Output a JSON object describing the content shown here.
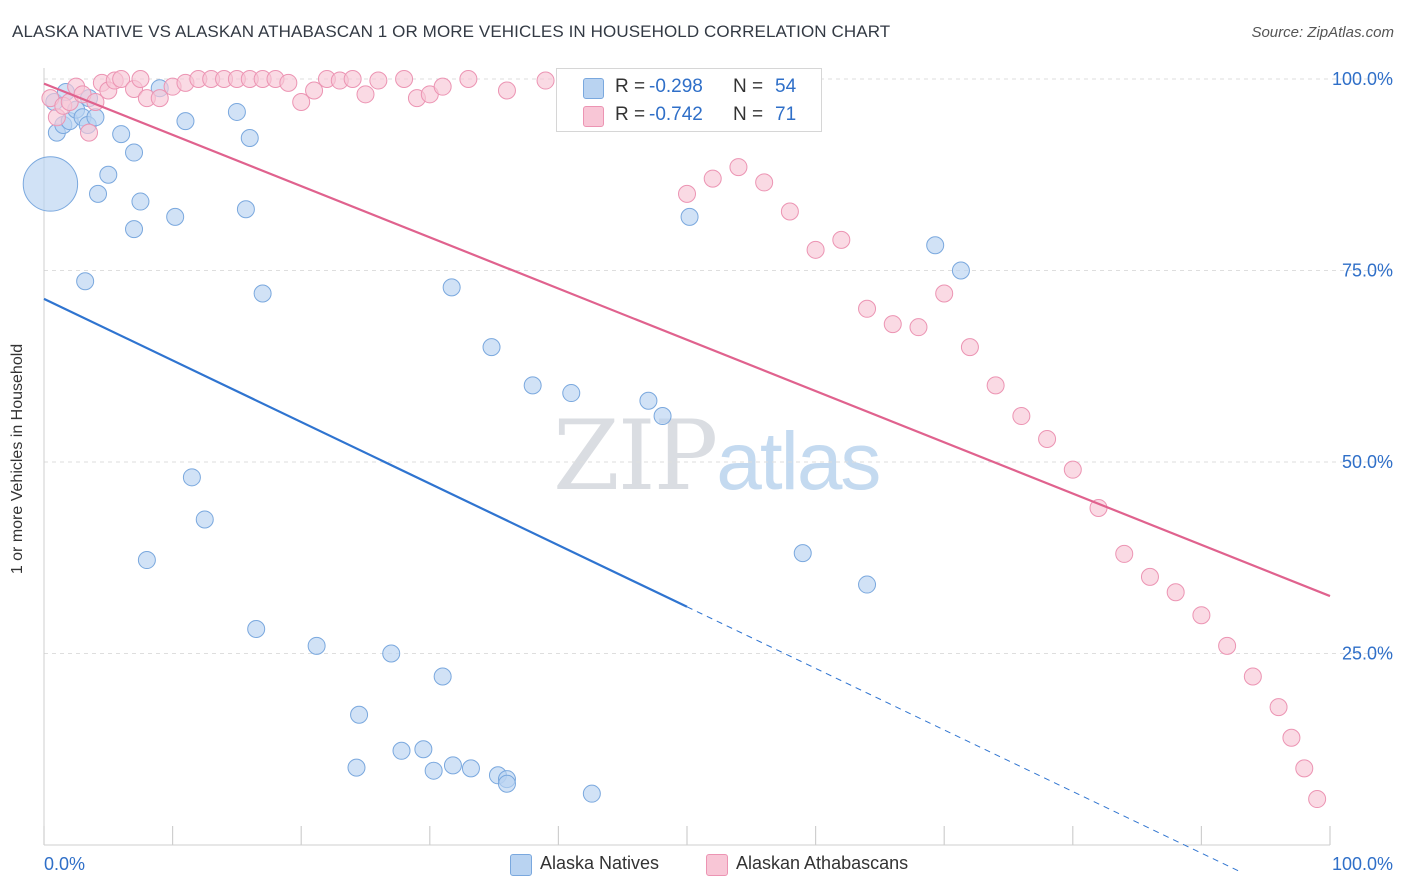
{
  "header": {
    "title": "ALASKA NATIVE VS ALASKAN ATHABASCAN 1 OR MORE VEHICLES IN HOUSEHOLD CORRELATION CHART",
    "source": "Source: ZipAtlas.com"
  },
  "watermark": {
    "zip": "ZIP",
    "atlas": "atlas"
  },
  "legend_top": {
    "rows": [
      {
        "r_label": "R =",
        "r_value": "-0.298",
        "n_label": "N =",
        "n_value": "54"
      },
      {
        "r_label": "R =",
        "r_value": "-0.742",
        "n_label": "N =",
        "n_value": "71"
      }
    ]
  },
  "legend_bottom": {
    "items": [
      "Alaska Natives",
      "Alaskan Athabascans"
    ]
  },
  "colors": {
    "blue_fill": "#b9d3f1",
    "blue_stroke": "#7aa8de",
    "blue_line": "#2f74d0",
    "pink_fill": "#f8c6d6",
    "pink_stroke": "#ec94b3",
    "pink_line": "#e0628e",
    "value_text": "#2f6fc8",
    "grid": "#dedede"
  },
  "chart_data": {
    "type": "scatter",
    "title": "ALASKA NATIVE VS ALASKAN ATHABASCAN 1 OR MORE VEHICLES IN HOUSEHOLD CORRELATION CHART",
    "xlabel": "",
    "ylabel": "1 or more Vehicles in Household",
    "xlim": [
      0,
      100
    ],
    "ylim": [
      0,
      102
    ],
    "x_tick_labels": [
      "0.0%",
      "100.0%"
    ],
    "y_ticks": [
      25,
      50,
      75,
      100
    ],
    "y_tick_labels": [
      "25.0%",
      "50.0%",
      "75.0%",
      "100.0%"
    ],
    "grid": true,
    "legend_placement": "bottom",
    "series": [
      {
        "name": "Alaska Natives",
        "color": "#7aa8de",
        "r": -0.298,
        "n": 54,
        "trend": {
          "x": [
            0,
            50
          ],
          "y": [
            71.3,
            31.1
          ],
          "extended_to_x": 100,
          "extended_y": -9.1
        },
        "points": [
          {
            "x": 0.5,
            "y": 86.3,
            "s": 3.2
          },
          {
            "x": 0.8,
            "y": 97.0
          },
          {
            "x": 1.0,
            "y": 93.0
          },
          {
            "x": 1.5,
            "y": 94.0
          },
          {
            "x": 2.0,
            "y": 94.5
          },
          {
            "x": 2.5,
            "y": 96.0
          },
          {
            "x": 3.0,
            "y": 95.0
          },
          {
            "x": 3.5,
            "y": 97.5
          },
          {
            "x": 3.4,
            "y": 94.0
          },
          {
            "x": 4.0,
            "y": 95.0
          },
          {
            "x": 1.7,
            "y": 98.3
          },
          {
            "x": 6.0,
            "y": 92.8
          },
          {
            "x": 7.0,
            "y": 90.4
          },
          {
            "x": 9.0,
            "y": 98.8
          },
          {
            "x": 11.0,
            "y": 94.5
          },
          {
            "x": 15.0,
            "y": 95.7
          },
          {
            "x": 16.0,
            "y": 92.3
          },
          {
            "x": 5.0,
            "y": 87.5
          },
          {
            "x": 7.5,
            "y": 84.0
          },
          {
            "x": 15.7,
            "y": 83.0
          },
          {
            "x": 10.2,
            "y": 82.0
          },
          {
            "x": 4.2,
            "y": 85.0
          },
          {
            "x": 7.0,
            "y": 80.4
          },
          {
            "x": 3.2,
            "y": 73.6
          },
          {
            "x": 17.0,
            "y": 72.0
          },
          {
            "x": 50.2,
            "y": 82.0
          },
          {
            "x": 69.3,
            "y": 78.3
          },
          {
            "x": 71.3,
            "y": 75.0
          },
          {
            "x": 31.7,
            "y": 72.8
          },
          {
            "x": 34.8,
            "y": 65.0
          },
          {
            "x": 38.0,
            "y": 60.0
          },
          {
            "x": 41.0,
            "y": 59.0
          },
          {
            "x": 47.0,
            "y": 58.0
          },
          {
            "x": 48.1,
            "y": 56.0
          },
          {
            "x": 8.0,
            "y": 37.2
          },
          {
            "x": 11.5,
            "y": 48.0
          },
          {
            "x": 12.5,
            "y": 42.5
          },
          {
            "x": 59.0,
            "y": 38.1
          },
          {
            "x": 64.0,
            "y": 34.0
          },
          {
            "x": 16.5,
            "y": 28.2
          },
          {
            "x": 21.2,
            "y": 26.0
          },
          {
            "x": 27.0,
            "y": 25.0
          },
          {
            "x": 31.0,
            "y": 22.0
          },
          {
            "x": 24.5,
            "y": 17.0
          },
          {
            "x": 24.3,
            "y": 10.1
          },
          {
            "x": 33.2,
            "y": 10.0
          },
          {
            "x": 27.8,
            "y": 12.3
          },
          {
            "x": 29.5,
            "y": 12.5
          },
          {
            "x": 30.3,
            "y": 9.7
          },
          {
            "x": 31.8,
            "y": 10.4
          },
          {
            "x": 35.3,
            "y": 9.1
          },
          {
            "x": 36.0,
            "y": 8.6
          },
          {
            "x": 42.6,
            "y": 6.7
          },
          {
            "x": 36.0,
            "y": 8.0
          }
        ]
      },
      {
        "name": "Alaskan Athabascans",
        "color": "#ec94b3",
        "r": -0.742,
        "n": 71,
        "trend": {
          "x": [
            0,
            100
          ],
          "y": [
            99.4,
            32.5
          ]
        },
        "points": [
          {
            "x": 0.5,
            "y": 97.5
          },
          {
            "x": 1.0,
            "y": 95.0
          },
          {
            "x": 1.5,
            "y": 96.5
          },
          {
            "x": 2.0,
            "y": 97.0
          },
          {
            "x": 2.5,
            "y": 99.0
          },
          {
            "x": 3.0,
            "y": 98.0
          },
          {
            "x": 3.5,
            "y": 93.0
          },
          {
            "x": 4.0,
            "y": 97.0
          },
          {
            "x": 4.5,
            "y": 99.5
          },
          {
            "x": 5.0,
            "y": 98.5
          },
          {
            "x": 5.5,
            "y": 99.8
          },
          {
            "x": 6.0,
            "y": 100.0
          },
          {
            "x": 7.0,
            "y": 98.7
          },
          {
            "x": 7.5,
            "y": 100.0
          },
          {
            "x": 8.0,
            "y": 97.5
          },
          {
            "x": 9.0,
            "y": 97.5
          },
          {
            "x": 10.0,
            "y": 99.0
          },
          {
            "x": 11.0,
            "y": 99.5
          },
          {
            "x": 12.0,
            "y": 100.0
          },
          {
            "x": 13.0,
            "y": 100.0
          },
          {
            "x": 14.0,
            "y": 100.0
          },
          {
            "x": 15.0,
            "y": 100.0
          },
          {
            "x": 16.0,
            "y": 100.0
          },
          {
            "x": 17.0,
            "y": 100.0
          },
          {
            "x": 18.0,
            "y": 100.0
          },
          {
            "x": 19.0,
            "y": 99.5
          },
          {
            "x": 20.0,
            "y": 97.0
          },
          {
            "x": 21.0,
            "y": 98.5
          },
          {
            "x": 22.0,
            "y": 100.0
          },
          {
            "x": 23.0,
            "y": 99.8
          },
          {
            "x": 24.0,
            "y": 100.0
          },
          {
            "x": 25.0,
            "y": 98.0
          },
          {
            "x": 26.0,
            "y": 99.8
          },
          {
            "x": 28.0,
            "y": 100.0
          },
          {
            "x": 29.0,
            "y": 97.5
          },
          {
            "x": 30.0,
            "y": 98.0
          },
          {
            "x": 31.0,
            "y": 99.0
          },
          {
            "x": 33.0,
            "y": 100.0
          },
          {
            "x": 36.0,
            "y": 98.5
          },
          {
            "x": 39.0,
            "y": 99.8
          },
          {
            "x": 42.0,
            "y": 100.0
          },
          {
            "x": 44.0,
            "y": 97.0
          },
          {
            "x": 46.0,
            "y": 97.0
          },
          {
            "x": 48.0,
            "y": 100.0
          },
          {
            "x": 50.0,
            "y": 85.0
          },
          {
            "x": 52.0,
            "y": 87.0
          },
          {
            "x": 54.0,
            "y": 88.5
          },
          {
            "x": 56.0,
            "y": 86.5
          },
          {
            "x": 58.0,
            "y": 82.7
          },
          {
            "x": 60.0,
            "y": 77.7
          },
          {
            "x": 62.0,
            "y": 79.0
          },
          {
            "x": 64.0,
            "y": 70.0
          },
          {
            "x": 66.0,
            "y": 68.0
          },
          {
            "x": 68.0,
            "y": 67.6
          },
          {
            "x": 70.0,
            "y": 72.0
          },
          {
            "x": 72.0,
            "y": 65.0
          },
          {
            "x": 74.0,
            "y": 60.0
          },
          {
            "x": 76.0,
            "y": 56.0
          },
          {
            "x": 78.0,
            "y": 53.0
          },
          {
            "x": 80.0,
            "y": 49.0
          },
          {
            "x": 82.0,
            "y": 44.0
          },
          {
            "x": 84.0,
            "y": 38.0
          },
          {
            "x": 86.0,
            "y": 35.0
          },
          {
            "x": 88.0,
            "y": 33.0
          },
          {
            "x": 90.0,
            "y": 30.0
          },
          {
            "x": 92.0,
            "y": 26.0
          },
          {
            "x": 94.0,
            "y": 22.0
          },
          {
            "x": 96.0,
            "y": 18.0
          },
          {
            "x": 97.0,
            "y": 14.0
          },
          {
            "x": 98.0,
            "y": 10.0
          },
          {
            "x": 99.0,
            "y": 6.0
          }
        ]
      }
    ]
  }
}
